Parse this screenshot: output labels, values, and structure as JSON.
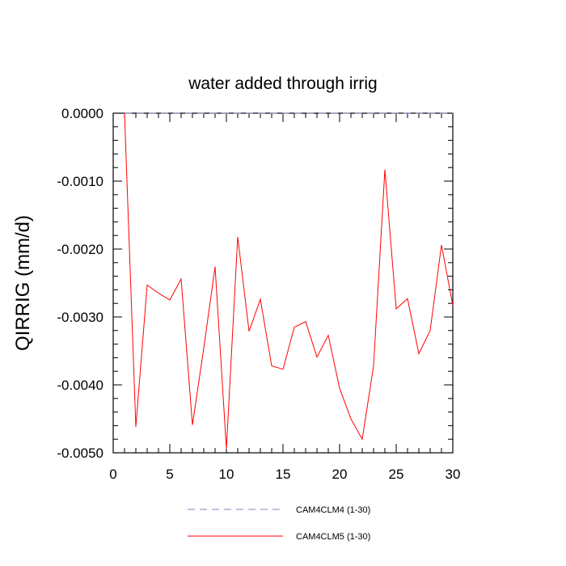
{
  "chart_data": {
    "type": "line",
    "title": "water added through irrig",
    "xlabel": "",
    "ylabel": "QIRRIG  (mm/d)",
    "xlim": [
      0,
      30
    ],
    "ylim": [
      -0.005,
      0.0
    ],
    "x_ticks": [
      0,
      5,
      10,
      15,
      20,
      25,
      30
    ],
    "x_tick_labels": [
      "0",
      "5",
      "10",
      "15",
      "20",
      "25",
      "30"
    ],
    "y_ticks": [
      0.0,
      -0.001,
      -0.002,
      -0.003,
      -0.004,
      -0.005
    ],
    "y_tick_labels": [
      "0.0000",
      "-0.0010",
      "-0.0020",
      "-0.0030",
      "-0.0040",
      "-0.0050"
    ],
    "series": [
      {
        "name": "CAM4CLM4 (1-30)",
        "color": "#8080c0",
        "style": "dashed",
        "x": [
          1,
          2,
          3,
          4,
          5,
          6,
          7,
          8,
          9,
          10,
          11,
          12,
          13,
          14,
          15,
          16,
          17,
          18,
          19,
          20,
          21,
          22,
          23,
          24,
          25,
          26,
          27,
          28,
          29,
          30
        ],
        "values": [
          0,
          0,
          0,
          0,
          0,
          0,
          0,
          0,
          0,
          0,
          0,
          0,
          0,
          0,
          0,
          0,
          0,
          0,
          0,
          0,
          0,
          0,
          0,
          0,
          0,
          0,
          0,
          0,
          0,
          0
        ]
      },
      {
        "name": "CAM4CLM5 (1-30)",
        "color": "#ff0000",
        "style": "solid",
        "x": [
          1,
          2,
          3,
          4,
          5,
          6,
          7,
          8,
          9,
          10,
          11,
          12,
          13,
          14,
          15,
          16,
          17,
          18,
          19,
          20,
          21,
          22,
          23,
          24,
          25,
          26,
          27,
          28,
          29,
          30
        ],
        "values": [
          0.0,
          -0.00462,
          -0.00253,
          -0.00265,
          -0.00275,
          -0.00244,
          -0.00459,
          -0.00346,
          -0.00226,
          -0.00494,
          -0.00182,
          -0.00321,
          -0.00274,
          -0.00372,
          -0.00377,
          -0.00315,
          -0.00307,
          -0.00359,
          -0.00327,
          -0.00405,
          -0.0045,
          -0.0048,
          -0.00372,
          -0.00083,
          -0.00288,
          -0.00273,
          -0.00354,
          -0.0032,
          -0.00194,
          -0.00283
        ]
      }
    ],
    "legend": {
      "placement": "bottom-center"
    }
  }
}
